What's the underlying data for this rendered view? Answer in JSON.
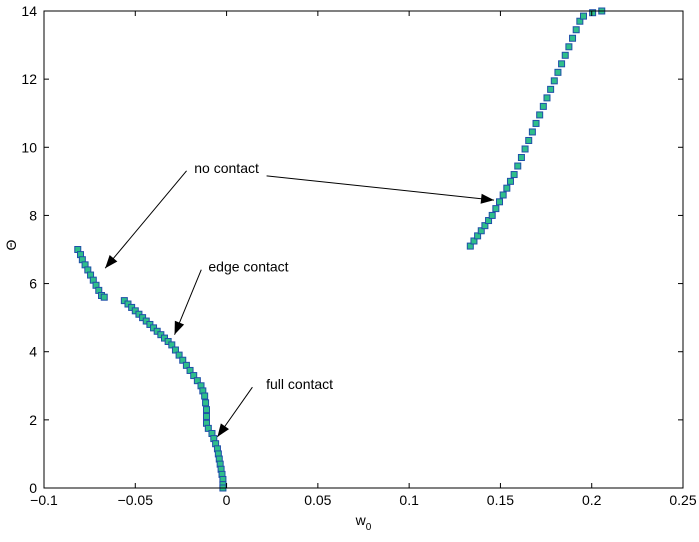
{
  "chart_data": {
    "type": "scatter",
    "title": "",
    "xlabel": "w",
    "xlabel_subscript": "0",
    "ylabel": "Θ",
    "xlim": [
      -0.1,
      0.25
    ],
    "ylim": [
      0,
      14
    ],
    "x_ticks": [
      -0.1,
      -0.05,
      0,
      0.05,
      0.1,
      0.15,
      0.2,
      0.25
    ],
    "x_tick_labels": [
      "−0.1",
      "−0.05",
      "0",
      "0.05",
      "0.1",
      "0.15",
      "0.2",
      "0.25"
    ],
    "y_ticks": [
      0,
      2,
      4,
      6,
      8,
      10,
      12,
      14
    ],
    "y_tick_labels": [
      "0",
      "2",
      "4",
      "6",
      "8",
      "10",
      "12",
      "14"
    ],
    "grid": false,
    "marker": "square",
    "marker_face_color": "#2fbf8a",
    "marker_edge_color": "#1f4fa8",
    "series": [
      {
        "points": [
          [
            -0.0815,
            7.0
          ],
          [
            -0.08,
            6.85
          ],
          [
            -0.079,
            6.7
          ],
          [
            -0.0775,
            6.55
          ],
          [
            -0.076,
            6.4
          ],
          [
            -0.0745,
            6.25
          ],
          [
            -0.073,
            6.1
          ],
          [
            -0.0715,
            5.95
          ],
          [
            -0.07,
            5.8
          ],
          [
            -0.0685,
            5.65
          ],
          [
            -0.067,
            5.6
          ]
        ]
      },
      {
        "points": [
          [
            -0.056,
            5.5
          ],
          [
            -0.054,
            5.4
          ],
          [
            -0.052,
            5.3
          ],
          [
            -0.05,
            5.2
          ],
          [
            -0.048,
            5.1
          ],
          [
            -0.046,
            5.0
          ],
          [
            -0.044,
            4.9
          ],
          [
            -0.042,
            4.8
          ],
          [
            -0.04,
            4.7
          ],
          [
            -0.038,
            4.6
          ],
          [
            -0.036,
            4.5
          ],
          [
            -0.034,
            4.4
          ],
          [
            -0.032,
            4.3
          ],
          [
            -0.03,
            4.2
          ],
          [
            -0.028,
            4.05
          ],
          [
            -0.026,
            3.9
          ],
          [
            -0.024,
            3.75
          ],
          [
            -0.022,
            3.6
          ],
          [
            -0.02,
            3.45
          ],
          [
            -0.018,
            3.3
          ],
          [
            -0.016,
            3.15
          ],
          [
            -0.014,
            3.0
          ],
          [
            -0.013,
            2.85
          ],
          [
            -0.012,
            2.7
          ],
          [
            -0.0115,
            2.5
          ],
          [
            -0.011,
            2.3
          ],
          [
            -0.011,
            2.1
          ],
          [
            -0.011,
            1.9
          ],
          [
            -0.01,
            1.75
          ],
          [
            -0.008,
            1.6
          ],
          [
            -0.007,
            1.45
          ],
          [
            -0.006,
            1.3
          ],
          [
            -0.005,
            1.15
          ],
          [
            -0.0045,
            1.0
          ],
          [
            -0.004,
            0.85
          ],
          [
            -0.0035,
            0.7
          ],
          [
            -0.003,
            0.55
          ],
          [
            -0.0025,
            0.4
          ],
          [
            -0.002,
            0.25
          ],
          [
            -0.002,
            0.1
          ],
          [
            -0.002,
            0.0
          ]
        ]
      },
      {
        "points": [
          [
            0.1335,
            7.1
          ],
          [
            0.1355,
            7.25
          ],
          [
            0.1375,
            7.4
          ],
          [
            0.1395,
            7.55
          ],
          [
            0.1415,
            7.7
          ],
          [
            0.1435,
            7.85
          ],
          [
            0.1455,
            8.0
          ],
          [
            0.1475,
            8.2
          ],
          [
            0.1495,
            8.4
          ],
          [
            0.1515,
            8.6
          ],
          [
            0.1535,
            8.8
          ],
          [
            0.1555,
            9.0
          ],
          [
            0.1575,
            9.2
          ],
          [
            0.1595,
            9.45
          ],
          [
            0.1615,
            9.7
          ],
          [
            0.1635,
            9.95
          ],
          [
            0.1655,
            10.2
          ],
          [
            0.1675,
            10.45
          ],
          [
            0.1695,
            10.7
          ],
          [
            0.1715,
            10.95
          ],
          [
            0.1735,
            11.2
          ],
          [
            0.1755,
            11.45
          ],
          [
            0.1775,
            11.7
          ],
          [
            0.1795,
            11.95
          ],
          [
            0.1815,
            12.2
          ],
          [
            0.1835,
            12.45
          ],
          [
            0.1855,
            12.7
          ],
          [
            0.1875,
            12.95
          ],
          [
            0.1895,
            13.2
          ],
          [
            0.1915,
            13.45
          ],
          [
            0.1935,
            13.7
          ],
          [
            0.1955,
            13.85
          ],
          [
            0.2005,
            13.95
          ],
          [
            0.2055,
            14.0
          ]
        ]
      }
    ],
    "annotations": [
      {
        "text": "no contact",
        "text_at": [
          0.0,
          9.25
        ],
        "arrows_to": [
          [
            -0.0665,
            6.45
          ],
          [
            0.1465,
            8.45
          ]
        ]
      },
      {
        "text": "edge contact",
        "text_at": [
          0.012,
          6.35
        ],
        "arrows_to": [
          [
            -0.0285,
            4.5
          ]
        ]
      },
      {
        "text": "full contact",
        "text_at": [
          0.04,
          2.9
        ],
        "arrows_to": [
          [
            -0.005,
            1.5
          ]
        ]
      }
    ]
  }
}
